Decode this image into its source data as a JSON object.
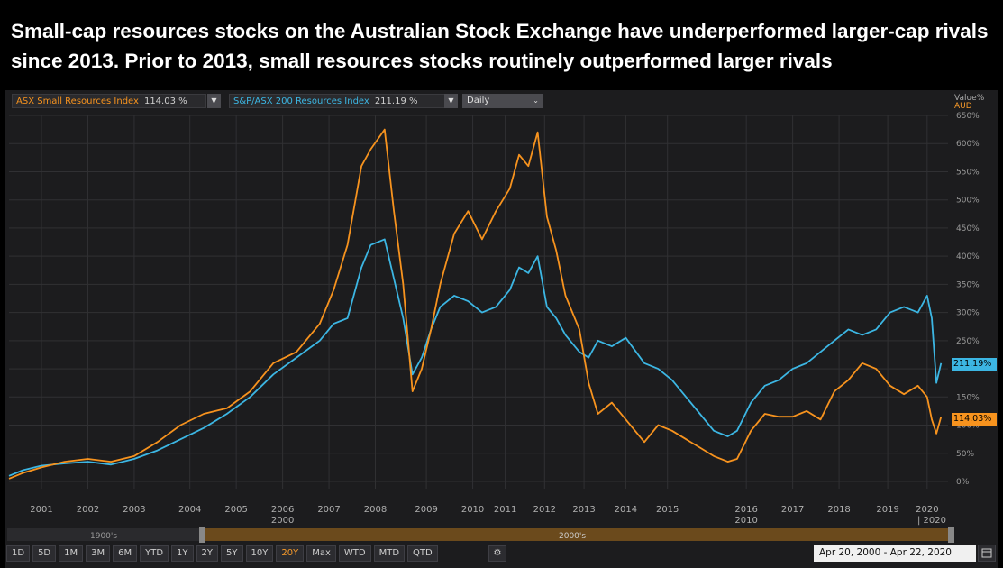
{
  "headline": "Small-cap resources stocks on the Australian Stock Exchange have underperformed larger-cap rivals since 2013. Prior to 2013, small resources stocks routinely outperformed larger rivals",
  "legend": {
    "small": {
      "name": "ASX Small Resources Index",
      "value": "114.03 %"
    },
    "large": {
      "name": "S&P/ASX 200 Resources Index",
      "value": "211.19 %"
    },
    "interval": "Daily"
  },
  "axis_header": {
    "line1": "Value%",
    "line2": "AUD"
  },
  "navigator": {
    "left_label": "1900's",
    "right_label": "2000's"
  },
  "toolbar": {
    "buttons": [
      "1D",
      "5D",
      "1M",
      "3M",
      "6M",
      "YTD",
      "1Y",
      "2Y",
      "5Y",
      "10Y",
      "20Y",
      "Max",
      "WTD",
      "MTD",
      "QTD"
    ],
    "active": "20Y"
  },
  "date_range": "Apr 20, 2000  -  Apr 22, 2020",
  "colors": {
    "small": "#f7931e",
    "large": "#3cb6e3",
    "bg": "#1c1c1e",
    "grid": "#303033"
  },
  "chart_data": {
    "type": "line",
    "title": "",
    "xlabel": "",
    "ylabel": "Value% AUD",
    "xlim": [
      2000.3,
      2020.55
    ],
    "ylim": [
      0,
      650
    ],
    "yticks": [
      0,
      50,
      100,
      150,
      200,
      250,
      300,
      350,
      400,
      450,
      500,
      550,
      600,
      650
    ],
    "ytick_labels": [
      "0%",
      "50%",
      "100%",
      "150%",
      "200%",
      "250%",
      "300%",
      "350%",
      "400%",
      "450%",
      "500%",
      "550%",
      "600%",
      "650%"
    ],
    "xticks": [
      {
        "label": "2001",
        "x": 2001
      },
      {
        "label": "2002",
        "x": 2002
      },
      {
        "label": "2003",
        "x": 2003
      },
      {
        "label": "2004",
        "x": 2004.2
      },
      {
        "label": "2005",
        "x": 2005.2
      },
      {
        "label": "2006",
        "x": 2006.2
      },
      {
        "label": "2007",
        "x": 2007.2
      },
      {
        "label": "2008",
        "x": 2008.2
      },
      {
        "label": "2009",
        "x": 2009.3
      },
      {
        "label": "2010",
        "x": 2010.3
      },
      {
        "label": "2011",
        "x": 2011
      },
      {
        "label": "2012",
        "x": 2011.85
      },
      {
        "label": "2013",
        "x": 2012.7
      },
      {
        "label": "2014",
        "x": 2013.6
      },
      {
        "label": "2015",
        "x": 2014.5
      },
      {
        "label": "2016",
        "x": 2016.2
      },
      {
        "label": "2017",
        "x": 2017.2
      },
      {
        "label": "2018",
        "x": 2018.2
      },
      {
        "label": "2019",
        "x": 2019.25
      },
      {
        "label": "2020",
        "x": 2020.1
      }
    ],
    "era_labels": [
      {
        "label": "2000",
        "x": 2006.2
      },
      {
        "label": "2010",
        "x": 2016.2
      },
      {
        "label": "| 2020",
        "x": 2020.2
      }
    ],
    "last_values": {
      "large": "211.19%",
      "small": "114.03%"
    },
    "series": [
      {
        "name": "ASX Small Resources Index",
        "color": "#f7931e",
        "x": [
          2000.3,
          2000.6,
          2001.0,
          2001.5,
          2002.0,
          2002.5,
          2003.0,
          2003.5,
          2004.0,
          2004.5,
          2005.0,
          2005.5,
          2006.0,
          2006.5,
          2007.0,
          2007.3,
          2007.6,
          2007.9,
          2008.1,
          2008.4,
          2008.6,
          2008.8,
          2009.0,
          2009.2,
          2009.4,
          2009.6,
          2009.9,
          2010.2,
          2010.5,
          2010.8,
          2011.1,
          2011.3,
          2011.5,
          2011.7,
          2011.9,
          2012.1,
          2012.3,
          2012.6,
          2012.8,
          2013.0,
          2013.3,
          2013.6,
          2014.0,
          2014.3,
          2014.6,
          2014.9,
          2015.2,
          2015.5,
          2015.8,
          2016.0,
          2016.3,
          2016.6,
          2016.9,
          2017.2,
          2017.5,
          2017.8,
          2018.1,
          2018.4,
          2018.7,
          2019.0,
          2019.3,
          2019.6,
          2019.9,
          2020.1,
          2020.2,
          2020.3,
          2020.4
        ],
        "y": [
          5,
          15,
          25,
          35,
          40,
          35,
          45,
          70,
          100,
          120,
          130,
          160,
          210,
          230,
          280,
          340,
          420,
          560,
          590,
          625,
          480,
          350,
          160,
          200,
          270,
          350,
          440,
          480,
          430,
          480,
          520,
          580,
          560,
          620,
          470,
          410,
          330,
          270,
          175,
          120,
          140,
          110,
          70,
          100,
          90,
          75,
          60,
          45,
          35,
          40,
          90,
          120,
          115,
          115,
          125,
          110,
          160,
          180,
          210,
          200,
          170,
          155,
          170,
          150,
          110,
          85,
          115
        ]
      },
      {
        "name": "S&P/ASX 200 Resources Index",
        "color": "#3cb6e3",
        "x": [
          2000.3,
          2000.6,
          2001.0,
          2001.5,
          2002.0,
          2002.5,
          2003.0,
          2003.5,
          2004.0,
          2004.5,
          2005.0,
          2005.5,
          2006.0,
          2006.5,
          2007.0,
          2007.3,
          2007.6,
          2007.9,
          2008.1,
          2008.4,
          2008.6,
          2008.8,
          2009.0,
          2009.2,
          2009.4,
          2009.6,
          2009.9,
          2010.2,
          2010.5,
          2010.8,
          2011.1,
          2011.3,
          2011.5,
          2011.7,
          2011.9,
          2012.1,
          2012.3,
          2012.6,
          2012.8,
          2013.0,
          2013.3,
          2013.6,
          2014.0,
          2014.3,
          2014.6,
          2014.9,
          2015.2,
          2015.5,
          2015.8,
          2016.0,
          2016.3,
          2016.6,
          2016.9,
          2017.2,
          2017.5,
          2017.8,
          2018.1,
          2018.4,
          2018.7,
          2019.0,
          2019.3,
          2019.6,
          2019.9,
          2020.1,
          2020.2,
          2020.3,
          2020.4
        ],
        "y": [
          10,
          20,
          28,
          32,
          35,
          30,
          40,
          55,
          75,
          95,
          120,
          150,
          190,
          220,
          250,
          280,
          290,
          380,
          420,
          430,
          360,
          290,
          190,
          220,
          270,
          310,
          330,
          320,
          300,
          310,
          340,
          380,
          370,
          400,
          310,
          290,
          260,
          230,
          220,
          250,
          240,
          255,
          210,
          200,
          180,
          150,
          120,
          90,
          80,
          90,
          140,
          170,
          180,
          200,
          210,
          230,
          250,
          270,
          260,
          270,
          300,
          310,
          300,
          330,
          290,
          175,
          210
        ]
      }
    ]
  }
}
